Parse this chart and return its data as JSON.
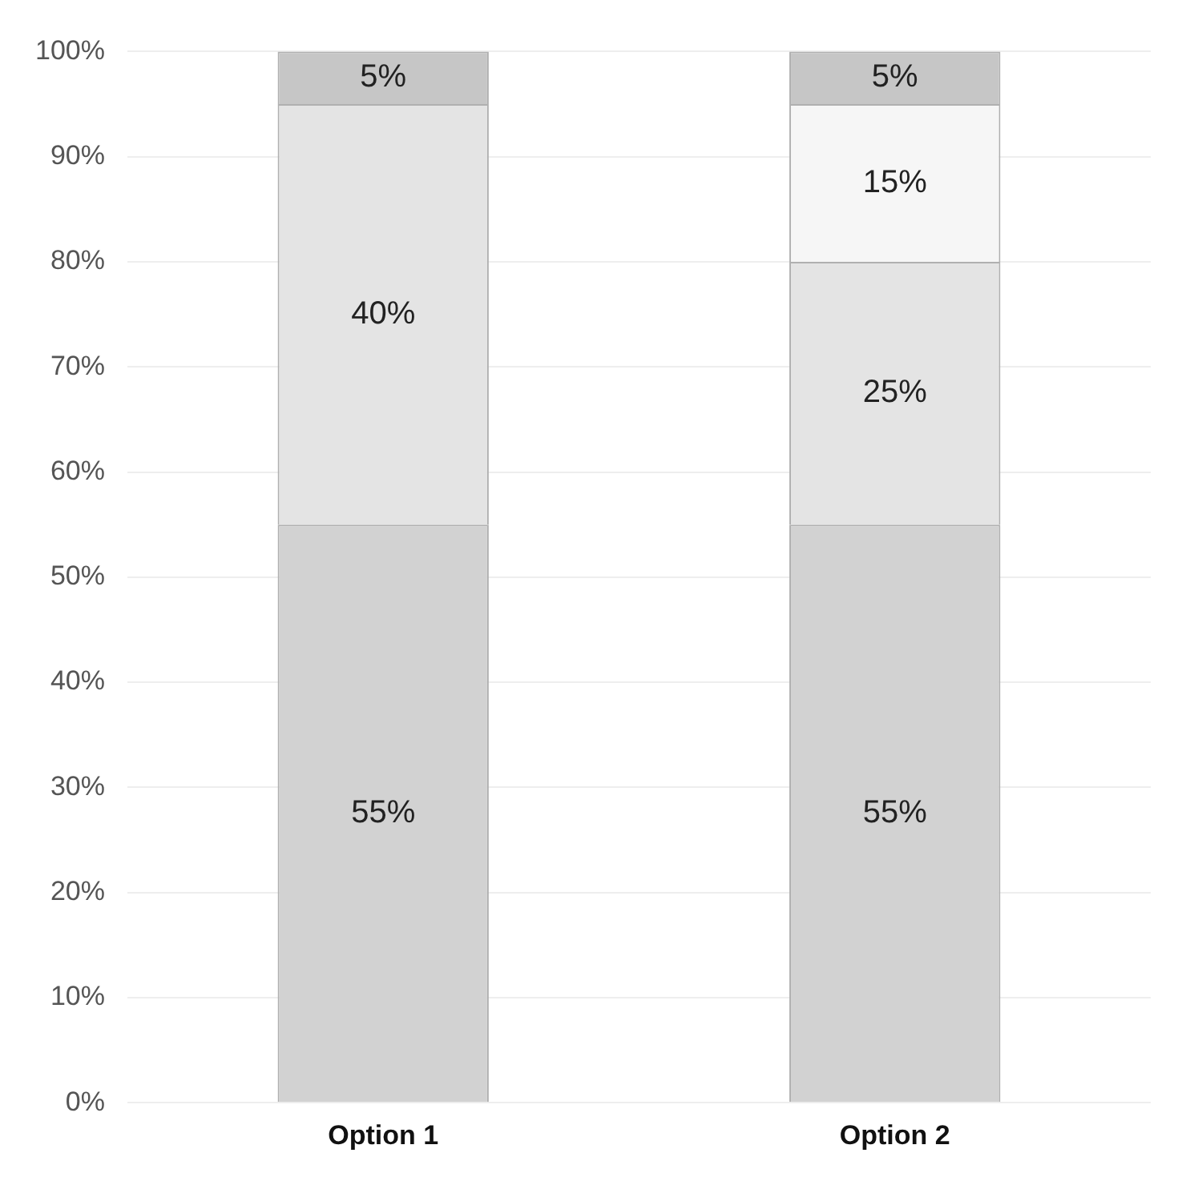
{
  "chart_data": {
    "type": "bar",
    "stacked": true,
    "categories": [
      "Option 1",
      "Option 2"
    ],
    "series": [
      {
        "color": "#d2d2d2",
        "values": [
          55,
          55
        ],
        "value_labels": [
          "55%",
          "55%"
        ]
      },
      {
        "color": "#e4e4e4",
        "values": [
          40,
          25
        ],
        "value_labels": [
          "40%",
          "25%"
        ]
      },
      {
        "color": "#f6f6f6",
        "values": [
          null,
          15
        ],
        "value_labels": [
          null,
          "15%"
        ]
      },
      {
        "color": "#c6c6c6",
        "values": [
          5,
          5
        ],
        "value_labels": [
          "5%",
          "5%"
        ]
      }
    ],
    "ylim": [
      0,
      100
    ],
    "yticks": [
      {
        "value": 0,
        "label": "0%"
      },
      {
        "value": 10,
        "label": "10%"
      },
      {
        "value": 20,
        "label": "20%"
      },
      {
        "value": 30,
        "label": "30%"
      },
      {
        "value": 40,
        "label": "40%"
      },
      {
        "value": 50,
        "label": "50%"
      },
      {
        "value": 60,
        "label": "60%"
      },
      {
        "value": 70,
        "label": "70%"
      },
      {
        "value": 80,
        "label": "80%"
      },
      {
        "value": 90,
        "label": "90%"
      },
      {
        "value": 100,
        "label": "100%"
      }
    ],
    "grid": "y",
    "legend": false
  }
}
